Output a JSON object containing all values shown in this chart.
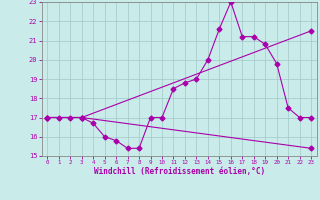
{
  "xlabel": "Windchill (Refroidissement éolien,°C)",
  "xlim": [
    -0.5,
    23.5
  ],
  "ylim": [
    15,
    23
  ],
  "xticks": [
    0,
    1,
    2,
    3,
    4,
    5,
    6,
    7,
    8,
    9,
    10,
    11,
    12,
    13,
    14,
    15,
    16,
    17,
    18,
    19,
    20,
    21,
    22,
    23
  ],
  "yticks": [
    15,
    16,
    17,
    18,
    19,
    20,
    21,
    22,
    23
  ],
  "bg_color": "#c9ecea",
  "line_color": "#aa00aa",
  "grid_color": "#a0c8c8",
  "line1_x": [
    0,
    1,
    2,
    3,
    4,
    5,
    6,
    7,
    8,
    9,
    10,
    11,
    12,
    13,
    14,
    15,
    16,
    17,
    18,
    19,
    20,
    21,
    22,
    23
  ],
  "line1_y": [
    17.0,
    17.0,
    17.0,
    17.0,
    16.7,
    16.0,
    15.8,
    15.4,
    15.4,
    17.0,
    17.0,
    18.5,
    18.8,
    19.0,
    20.0,
    21.6,
    23.0,
    21.2,
    21.2,
    20.8,
    19.8,
    17.5,
    17.0,
    17.0
  ],
  "line2_x": [
    0,
    3,
    23
  ],
  "line2_y": [
    17.0,
    17.0,
    15.4
  ],
  "line3_x": [
    0,
    3,
    23
  ],
  "line3_y": [
    17.0,
    17.0,
    21.5
  ],
  "markersize": 2.5,
  "linewidth": 0.8
}
